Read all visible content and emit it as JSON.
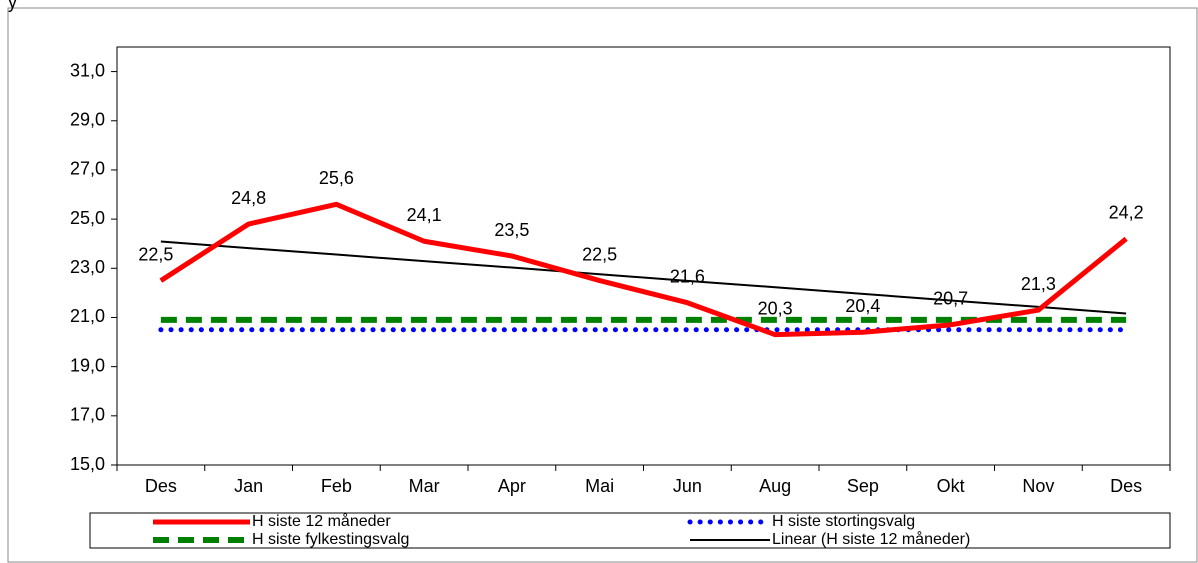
{
  "chart_data": {
    "type": "line",
    "title": "y",
    "categories": [
      "Des",
      "Jan",
      "Feb",
      "Mar",
      "Apr",
      "Mai",
      "Jun",
      "Aug",
      "Sep",
      "Okt",
      "Nov",
      "Des"
    ],
    "series": [
      {
        "name": "H siste 12 måneder",
        "color": "#ff0000",
        "style": "solid",
        "values": [
          22.5,
          24.8,
          25.6,
          24.1,
          23.5,
          22.5,
          21.6,
          20.3,
          20.4,
          20.7,
          21.3,
          24.2
        ],
        "value_labels": [
          "22,5",
          "24,8",
          "25,6",
          "24,1",
          "23,5",
          "22,5",
          "21,6",
          "20,3",
          "20,4",
          "20,7",
          "21,3",
          "24,2"
        ]
      },
      {
        "name": "H siste stortingsvalg",
        "color": "#0000ff",
        "style": "dotted",
        "values": [
          20.5,
          20.5,
          20.5,
          20.5,
          20.5,
          20.5,
          20.5,
          20.5,
          20.5,
          20.5,
          20.5,
          20.5
        ]
      },
      {
        "name": "H siste fylkestingsvalg",
        "color": "#008000",
        "style": "dashed",
        "values": [
          20.9,
          20.9,
          20.9,
          20.9,
          20.9,
          20.9,
          20.9,
          20.9,
          20.9,
          20.9,
          20.9,
          20.9
        ]
      },
      {
        "name": "Linear (H siste 12 måneder)",
        "color": "#000000",
        "style": "thin",
        "values": [
          24.09,
          23.82,
          23.56,
          23.29,
          23.03,
          22.76,
          22.49,
          22.23,
          21.96,
          21.69,
          21.43,
          21.16
        ]
      }
    ],
    "ylim": [
      15,
      32
    ],
    "yticks": [
      {
        "value": 15,
        "label": "15,0"
      },
      {
        "value": 17,
        "label": "17,0"
      },
      {
        "value": 19,
        "label": "19,0"
      },
      {
        "value": 21,
        "label": "21,0"
      },
      {
        "value": 23,
        "label": "23,0"
      },
      {
        "value": 25,
        "label": "25,0"
      },
      {
        "value": 27,
        "label": "27,0"
      },
      {
        "value": 29,
        "label": "29,0"
      },
      {
        "value": 31,
        "label": "31,0"
      }
    ],
    "legend": "bottom"
  }
}
